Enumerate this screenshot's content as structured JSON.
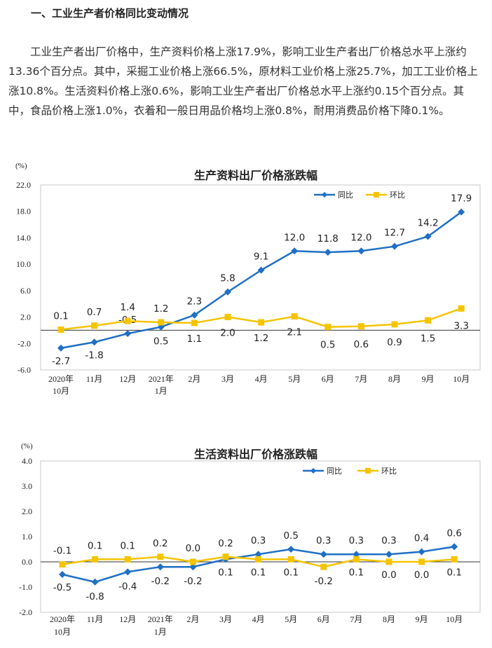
{
  "heading": "一、工业生产者价格同比变动情况",
  "paragraph": "工业生产者出厂价格中，生产资料价格上涨17.9%，影响工业生产者出厂价格总水平上涨约13.36个百分点。其中，采掘工业价格上涨66.5%，原材料工业价格上涨25.7%，加工工业价格上涨10.8%。生活资料价格上涨0.6%，影响工业生产者出厂价格总水平上涨约0.15个百分点。其中，食品价格上涨1.0%，衣着和一般日用品价格均上涨0.8%，耐用消费品价格下降0.1%。",
  "colors": {
    "yoy": "#1f6fc5",
    "mom": "#f5c400",
    "axis": "#333333",
    "frame": "#c8c8c8"
  },
  "chart_data": [
    {
      "type": "line",
      "title": "生产资料出厂价格涨跌幅",
      "unit": "(%)",
      "categories": [
        "2020年\n10月",
        "11月",
        "12月",
        "2021年\n1月",
        "2月",
        "3月",
        "4月",
        "5月",
        "6月",
        "7月",
        "8月",
        "9月",
        "10月"
      ],
      "ylim": [
        -6.0,
        22.0
      ],
      "yticks": [
        "-6.0",
        "-2.0",
        "2.0",
        "6.0",
        "10.0",
        "14.0",
        "18.0",
        "22.0"
      ],
      "legend_position": "top-right",
      "series": [
        {
          "name": "同比",
          "values": [
            -2.7,
            -1.8,
            -0.5,
            0.5,
            2.3,
            5.8,
            9.1,
            12.0,
            11.8,
            12.0,
            12.7,
            14.2,
            17.9
          ],
          "labels": [
            "-2.7",
            "-1.8",
            "-0.5",
            "0.5",
            "2.3",
            "5.8",
            "9.1",
            "12.0",
            "11.8",
            "12.0",
            "12.7",
            "14.2",
            "17.9"
          ]
        },
        {
          "name": "环比",
          "values": [
            0.1,
            0.7,
            1.4,
            1.2,
            1.1,
            2.0,
            1.2,
            2.1,
            0.5,
            0.6,
            0.9,
            1.5,
            3.3
          ],
          "labels": [
            "0.1",
            "0.7",
            "1.4",
            "1.2",
            "1.1",
            "2.0",
            "1.2",
            "2.1",
            "0.5",
            "0.6",
            "0.9",
            "1.5",
            "3.3"
          ]
        }
      ]
    },
    {
      "type": "line",
      "title": "生活资料出厂价格涨跌幅",
      "unit": "(%)",
      "categories": [
        "2020年\n10月",
        "11月",
        "12月",
        "2021年\n1月",
        "2月",
        "3月",
        "4月",
        "5月",
        "6月",
        "7月",
        "8月",
        "9月",
        "10月"
      ],
      "ylim": [
        -2.0,
        4.0
      ],
      "yticks": [
        "-2.0",
        "-1.0",
        "0.0",
        "1.0",
        "2.0",
        "3.0",
        "4.0"
      ],
      "legend_position": "top-right",
      "series": [
        {
          "name": "同比",
          "values": [
            -0.5,
            -0.8,
            -0.4,
            -0.2,
            -0.2,
            0.1,
            0.3,
            0.5,
            0.3,
            0.3,
            0.3,
            0.4,
            0.6
          ],
          "labels": [
            "-0.5",
            "-0.8",
            "-0.4",
            "-0.2",
            "-0.2",
            "0.1",
            "0.3",
            "0.5",
            "0.3",
            "0.3",
            "0.3",
            "0.4",
            "0.6"
          ]
        },
        {
          "name": "环比",
          "values": [
            -0.1,
            0.1,
            0.1,
            0.2,
            0.0,
            0.2,
            0.1,
            0.1,
            -0.2,
            0.1,
            0.0,
            0.0,
            0.1
          ],
          "labels": [
            "-0.1",
            "0.1",
            "0.1",
            "0.2",
            "0.0",
            "0.2",
            "0.1",
            "0.1",
            "-0.2",
            "0.1",
            "0.0",
            "0.0",
            "0.1"
          ]
        }
      ]
    }
  ]
}
